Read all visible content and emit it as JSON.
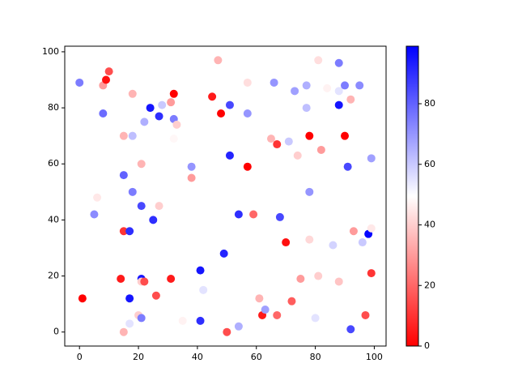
{
  "chart_data": {
    "type": "scatter",
    "x": [
      0,
      1,
      5,
      6,
      8,
      8,
      9,
      10,
      14,
      15,
      15,
      15,
      15,
      17,
      17,
      17,
      18,
      18,
      18,
      20,
      21,
      21,
      21,
      21,
      22,
      21,
      22,
      24,
      25,
      26,
      27,
      27,
      28,
      31,
      31,
      32,
      32,
      33,
      32,
      35,
      38,
      38,
      41,
      41,
      42,
      45,
      47,
      48,
      49,
      50,
      51,
      51,
      54,
      54,
      57,
      57,
      57,
      59,
      61,
      62,
      63,
      65,
      66,
      67,
      67,
      68,
      70,
      71,
      72,
      73,
      74,
      75,
      77,
      77,
      78,
      78,
      78,
      80,
      81,
      81,
      82,
      84,
      86,
      88,
      88,
      88,
      88,
      90,
      90,
      91,
      92,
      92,
      93,
      95,
      96,
      97,
      98,
      99,
      99,
      99
    ],
    "y": [
      89,
      12,
      42,
      48,
      88,
      78,
      90,
      93,
      19,
      70,
      56,
      36,
      0,
      36,
      12,
      3,
      85,
      70,
      50,
      6,
      60,
      45,
      19,
      18,
      18,
      5,
      75,
      80,
      40,
      13,
      45,
      77,
      81,
      82,
      19,
      85,
      76,
      74,
      69,
      4,
      59,
      55,
      22,
      4,
      15,
      84,
      97,
      78,
      28,
      0,
      81,
      63,
      42,
      2,
      89,
      78,
      59,
      42,
      12,
      6,
      8,
      69,
      89,
      67,
      6,
      41,
      32,
      68,
      11,
      86,
      63,
      19,
      88,
      80,
      70,
      50,
      33,
      5,
      20,
      97,
      65,
      87,
      31,
      96,
      86,
      81,
      18,
      88,
      70,
      59,
      83,
      1,
      36,
      88,
      32,
      6,
      35,
      37,
      62,
      21
    ],
    "c": [
      75,
      0,
      72,
      45,
      30,
      78,
      3,
      15,
      5,
      35,
      80,
      10,
      35,
      90,
      95,
      55,
      35,
      62,
      75,
      40,
      35,
      85,
      95,
      40,
      15,
      75,
      65,
      95,
      90,
      15,
      40,
      90,
      60,
      30,
      5,
      0,
      75,
      40,
      48,
      47,
      70,
      30,
      95,
      90,
      55,
      5,
      35,
      0,
      92,
      15,
      85,
      92,
      90,
      65,
      43,
      70,
      0,
      20,
      35,
      5,
      68,
      35,
      70,
      10,
      20,
      85,
      3,
      60,
      18,
      68,
      40,
      30,
      65,
      62,
      0,
      70,
      42,
      55,
      40,
      43,
      30,
      47,
      58,
      75,
      55,
      95,
      38,
      75,
      0,
      85,
      35,
      85,
      30,
      72,
      60,
      15,
      98,
      45,
      68,
      10
    ],
    "colormap": "bwr_r",
    "clim": [
      0,
      99
    ],
    "cticks": [
      0,
      20,
      40,
      60,
      80
    ],
    "xlim": [
      -5,
      104
    ],
    "ylim": [
      -5,
      102
    ],
    "xticks": [
      0,
      20,
      40,
      60,
      80,
      100
    ],
    "yticks": [
      0,
      20,
      40,
      60,
      80,
      100
    ]
  }
}
